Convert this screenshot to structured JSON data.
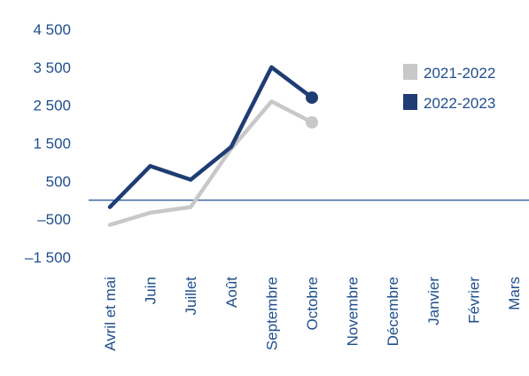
{
  "chart_data": {
    "type": "line",
    "categories": [
      "Avril et mai",
      "Juin",
      "Juillet",
      "Août",
      "Septembre",
      "Octobre",
      "Novembre",
      "Décembre",
      "Janvier",
      "Février",
      "Mars"
    ],
    "series": [
      {
        "name": "2021-2022",
        "color": "#c8c8c8",
        "values": [
          -650,
          -330,
          -180,
          1350,
          2600,
          2050,
          null,
          null,
          null,
          null,
          null
        ]
      },
      {
        "name": "2022-2023",
        "color": "#1f3d73",
        "values": [
          -180,
          900,
          540,
          1400,
          3500,
          2700,
          null,
          null,
          null,
          null,
          null
        ]
      }
    ],
    "yticks": [
      4500,
      3500,
      2500,
      1500,
      500,
      -500,
      -1500
    ],
    "ytick_labels": [
      "4 500",
      "3 500",
      "2 500",
      "1 500",
      "500",
      "–500",
      "–1 500"
    ],
    "ylim": [
      -1500,
      4500
    ],
    "zero_line": 0,
    "zero_line_color": "#1f4e8c",
    "label_color": "#1f4e8c",
    "legend_position": "right"
  }
}
